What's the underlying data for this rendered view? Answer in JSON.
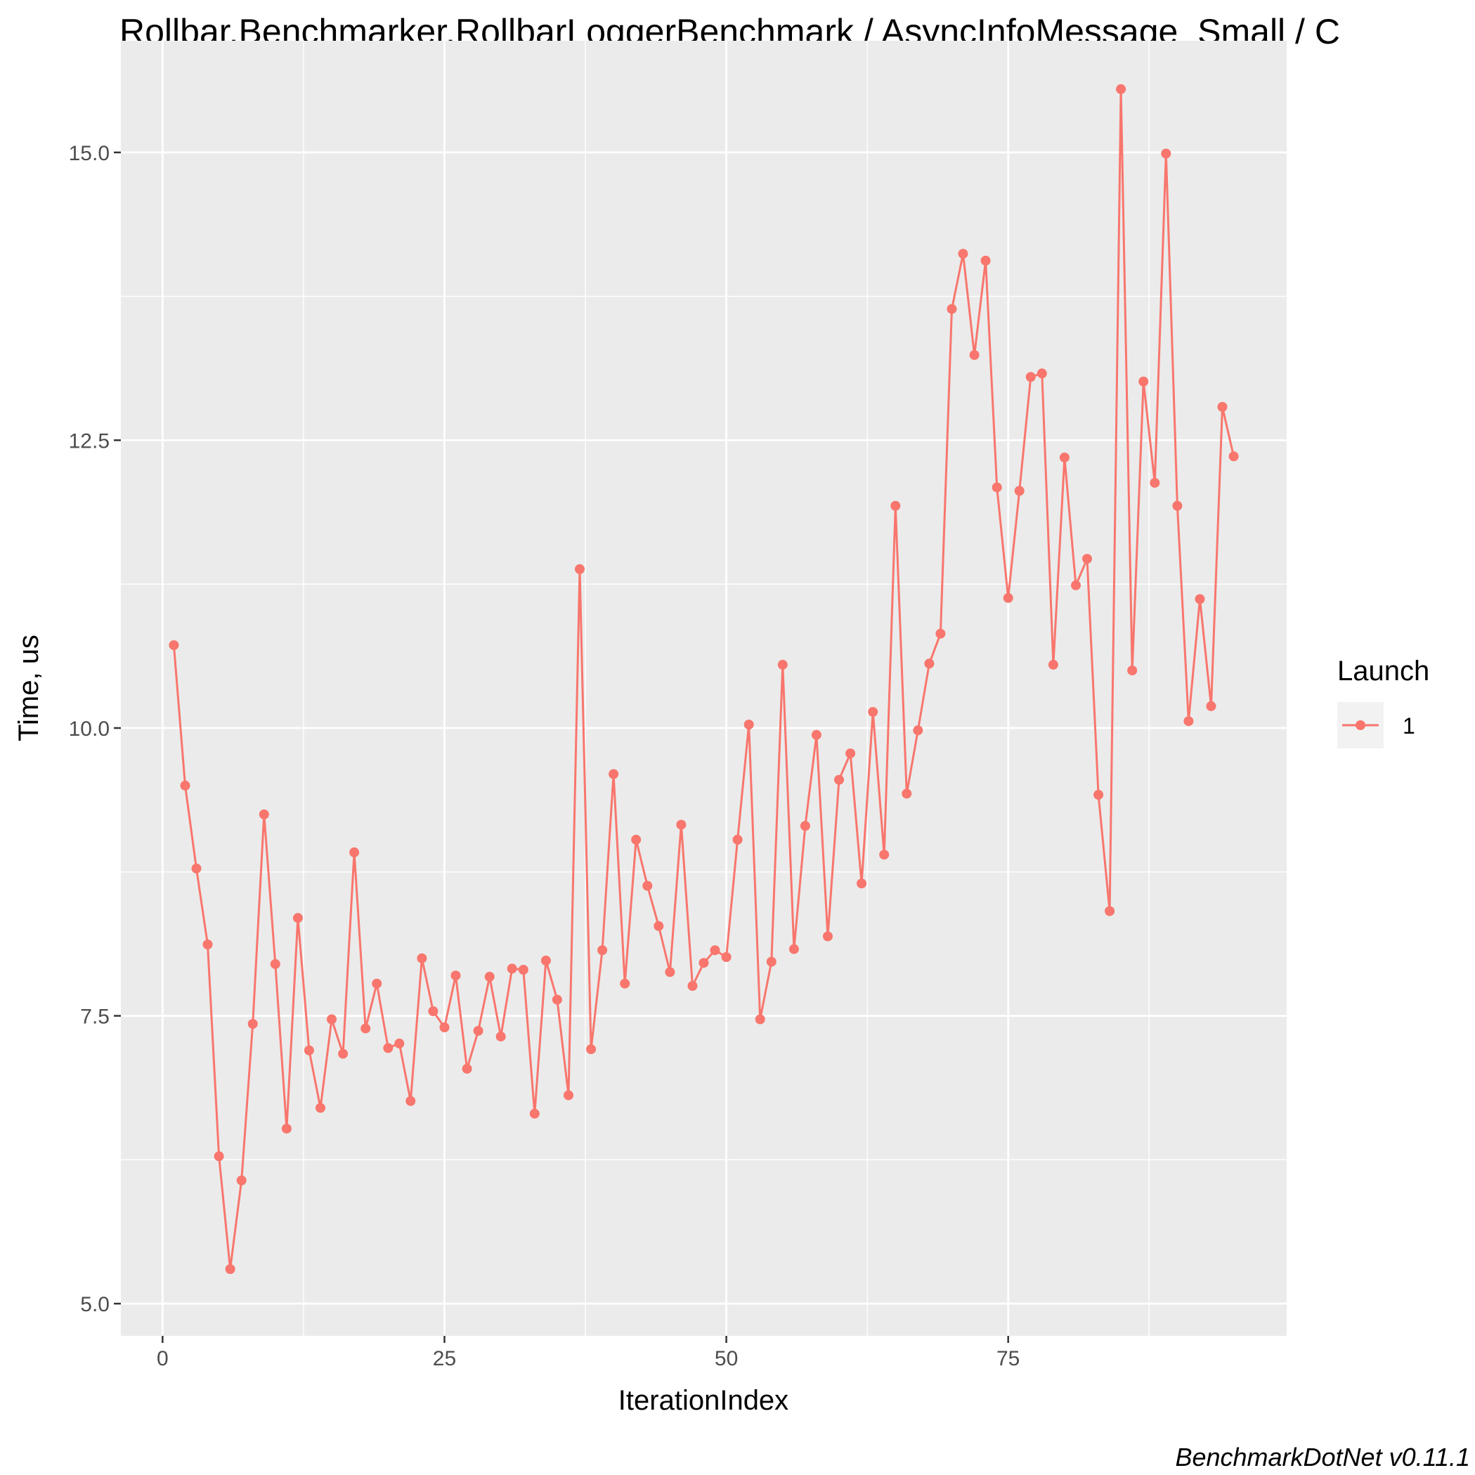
{
  "chart_data": {
    "type": "line",
    "title": "Rollbar.Benchmarker.RollbarLoggerBenchmark / AsyncInfoMessage_Small / C",
    "xlabel": "IterationIndex",
    "ylabel": "Time, us",
    "xlim": [
      -3.7,
      99.7
    ],
    "ylim": [
      4.72,
      15.97
    ],
    "x_ticks": [
      0,
      25,
      50,
      75
    ],
    "x_tick_labels": [
      "0",
      "25",
      "50",
      "75"
    ],
    "y_ticks": [
      5.0,
      7.5,
      10.0,
      12.5,
      15.0
    ],
    "y_tick_labels": [
      "5.0",
      "7.5",
      "10.0",
      "12.5",
      "15.0"
    ],
    "grid": true,
    "legend": {
      "title": "Launch",
      "position": "right"
    },
    "caption": "BenchmarkDotNet v0.11.1",
    "series": [
      {
        "name": "1",
        "color": "#F8766D",
        "x": [
          1,
          2,
          3,
          4,
          5,
          6,
          7,
          8,
          9,
          10,
          11,
          12,
          13,
          14,
          15,
          16,
          17,
          18,
          19,
          20,
          21,
          22,
          23,
          24,
          25,
          26,
          27,
          28,
          29,
          30,
          31,
          32,
          33,
          34,
          35,
          36,
          37,
          38,
          39,
          40,
          41,
          42,
          43,
          44,
          45,
          46,
          47,
          48,
          49,
          50,
          51,
          52,
          53,
          54,
          55,
          56,
          57,
          58,
          59,
          60,
          61,
          62,
          63,
          64,
          65,
          66,
          67,
          68,
          69,
          70,
          71,
          72,
          73,
          74,
          75,
          76,
          77,
          78,
          79,
          80,
          81,
          82,
          83,
          84,
          85,
          86,
          87,
          88,
          89,
          90,
          91,
          92,
          93,
          94,
          95
        ],
        "values": [
          10.72,
          9.5,
          8.78,
          8.12,
          6.28,
          5.3,
          6.07,
          7.43,
          9.25,
          7.95,
          6.52,
          8.35,
          7.2,
          6.7,
          7.47,
          7.17,
          8.92,
          7.39,
          7.78,
          7.22,
          7.26,
          6.76,
          8.0,
          7.54,
          7.4,
          7.85,
          7.04,
          7.37,
          7.84,
          7.32,
          7.91,
          7.9,
          6.65,
          7.98,
          7.64,
          6.81,
          11.38,
          7.21,
          8.07,
          9.6,
          7.78,
          9.03,
          8.63,
          8.28,
          7.88,
          9.16,
          7.76,
          7.96,
          8.07,
          8.01,
          9.03,
          10.03,
          7.47,
          7.97,
          10.55,
          8.08,
          9.15,
          9.94,
          8.19,
          9.55,
          9.78,
          8.65,
          10.14,
          8.9,
          11.93,
          9.43,
          9.98,
          10.56,
          10.82,
          13.64,
          14.12,
          13.24,
          14.06,
          12.09,
          11.13,
          12.06,
          13.05,
          13.08,
          10.55,
          12.35,
          11.24,
          11.47,
          9.42,
          8.41,
          15.55,
          10.5,
          13.01,
          12.13,
          14.99,
          11.93,
          10.06,
          11.12,
          10.19,
          12.79,
          12.36
        ]
      }
    ]
  }
}
